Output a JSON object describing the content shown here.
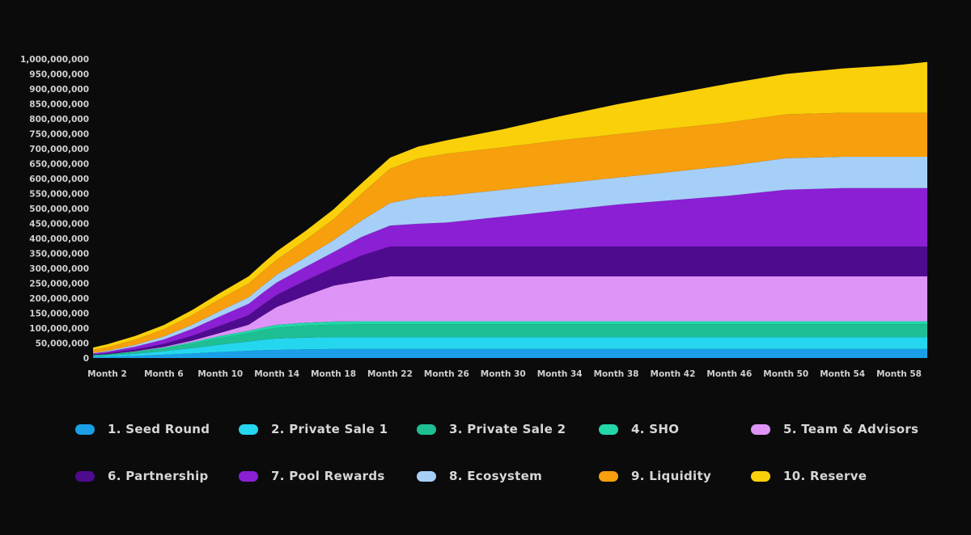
{
  "chart_data": {
    "type": "area",
    "stacked": true,
    "title": "",
    "xlabel": "",
    "ylabel": "",
    "ylim": [
      0,
      1000000000
    ],
    "y_ticks": [
      0,
      50000000,
      100000000,
      150000000,
      200000000,
      250000000,
      300000000,
      350000000,
      400000000,
      450000000,
      500000000,
      550000000,
      600000000,
      650000000,
      700000000,
      750000000,
      800000000,
      850000000,
      900000000,
      950000000,
      1000000000
    ],
    "y_tick_labels": [
      "0",
      "50,000,000",
      "100,000,000",
      "150,000,000",
      "200,000,000",
      "250,000,000",
      "300,000,000",
      "350,000,000",
      "400,000,000",
      "450,000,000",
      "500,000,000",
      "550,000,000",
      "600,000,000",
      "650,000,000",
      "700,000,000",
      "750,000,000",
      "800,000,000",
      "850,000,000",
      "900,000,000",
      "950,000,000",
      "1,000,000,000"
    ],
    "x_ticks": [
      2,
      6,
      10,
      14,
      18,
      22,
      26,
      30,
      34,
      38,
      42,
      46,
      50,
      54,
      58
    ],
    "x_tick_labels": [
      "Month 2",
      "Month 6",
      "Month 10",
      "Month 14",
      "Month 18",
      "Month 22",
      "Month 26",
      "Month 30",
      "Month 34",
      "Month 38",
      "Month 42",
      "Month 46",
      "Month 50",
      "Month 54",
      "Month 58"
    ],
    "x": [
      1,
      2,
      4,
      6,
      8,
      10,
      12,
      13,
      14,
      16,
      18,
      20,
      22,
      24,
      26,
      30,
      34,
      38,
      42,
      46,
      50,
      54,
      58,
      60
    ],
    "series": [
      {
        "name": "1. Seed Round",
        "color": "#1a9fe8",
        "values": [
          3000000,
          4000000,
          7000000,
          11000000,
          15000000,
          20000000,
          24000000,
          26000000,
          27000000,
          29000000,
          30000000,
          30000000,
          30000000,
          30000000,
          30000000,
          30000000,
          30000000,
          30000000,
          30000000,
          30000000,
          30000000,
          30000000,
          30000000,
          30000000
        ]
      },
      {
        "name": "2. Private Sale  1",
        "color": "#25d6ef",
        "values": [
          3000000,
          4000000,
          7000000,
          12000000,
          18000000,
          25000000,
          31000000,
          35000000,
          38000000,
          39000000,
          40000000,
          40000000,
          40000000,
          40000000,
          40000000,
          40000000,
          40000000,
          40000000,
          40000000,
          40000000,
          40000000,
          40000000,
          40000000,
          40000000
        ]
      },
      {
        "name": "3. Private Sale  2",
        "color": "#1fbf94",
        "values": [
          3000000,
          4000000,
          6000000,
          9000000,
          15000000,
          22000000,
          28000000,
          32000000,
          36000000,
          40000000,
          42000000,
          43000000,
          43000000,
          43000000,
          43000000,
          43000000,
          43000000,
          43000000,
          43000000,
          43000000,
          43000000,
          43000000,
          43000000,
          43000000
        ]
      },
      {
        "name": "4. SHO",
        "color": "#22d8a8",
        "values": [
          1000000,
          1000000,
          2000000,
          3000000,
          5000000,
          7000000,
          8000000,
          9000000,
          10000000,
          10000000,
          10000000,
          10000000,
          10000000,
          10000000,
          10000000,
          10000000,
          10000000,
          10000000,
          10000000,
          10000000,
          10000000,
          10000000,
          10000000,
          10000000
        ]
      },
      {
        "name": "5. Team & Advisors",
        "color": "#de94f6",
        "values": [
          0,
          0,
          1000000,
          2000000,
          5000000,
          10000000,
          20000000,
          40000000,
          60000000,
          90000000,
          120000000,
          135000000,
          150000000,
          150000000,
          150000000,
          150000000,
          150000000,
          150000000,
          150000000,
          150000000,
          150000000,
          150000000,
          150000000,
          150000000
        ]
      },
      {
        "name": "6. Partnership",
        "color": "#4e0b8e",
        "values": [
          2000000,
          3000000,
          6000000,
          10000000,
          16000000,
          24000000,
          32000000,
          36000000,
          40000000,
          50000000,
          60000000,
          85000000,
          100000000,
          100000000,
          100000000,
          100000000,
          100000000,
          100000000,
          100000000,
          100000000,
          100000000,
          100000000,
          100000000,
          100000000
        ]
      },
      {
        "name": "7. Pool  Rewards",
        "color": "#8b1fd4",
        "values": [
          3000000,
          5000000,
          9000000,
          15000000,
          23000000,
          32000000,
          38000000,
          40000000,
          42000000,
          46000000,
          52000000,
          62000000,
          70000000,
          76000000,
          80000000,
          100000000,
          120000000,
          140000000,
          155000000,
          170000000,
          190000000,
          195000000,
          195000000,
          195000000
        ]
      },
      {
        "name": "8. Ecosystem",
        "color": "#a6cff7",
        "values": [
          2000000,
          3000000,
          6000000,
          10000000,
          14000000,
          18000000,
          22000000,
          24000000,
          26000000,
          32000000,
          40000000,
          55000000,
          75000000,
          88000000,
          90000000,
          90000000,
          90000000,
          90000000,
          95000000,
          100000000,
          105000000,
          105000000,
          105000000,
          105000000
        ]
      },
      {
        "name": "9. Liquidity",
        "color": "#f79f0d",
        "values": [
          10000000,
          12000000,
          18000000,
          24000000,
          32000000,
          40000000,
          46000000,
          48000000,
          50000000,
          58000000,
          70000000,
          90000000,
          115000000,
          130000000,
          140000000,
          142000000,
          145000000,
          145000000,
          145000000,
          145000000,
          147000000,
          147000000,
          147000000,
          147000000
        ]
      },
      {
        "name": "10. Reserve",
        "color": "#fad00a",
        "values": [
          8000000,
          10000000,
          12000000,
          14000000,
          17000000,
          20000000,
          24000000,
          26000000,
          28000000,
          30000000,
          33000000,
          35000000,
          37000000,
          40000000,
          45000000,
          60000000,
          80000000,
          100000000,
          115000000,
          130000000,
          135000000,
          148000000,
          160000000,
          170000000
        ]
      }
    ]
  }
}
